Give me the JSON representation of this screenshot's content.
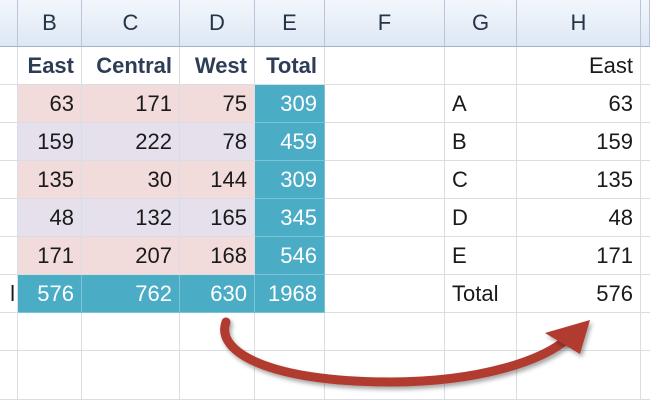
{
  "columns": [
    "B",
    "C",
    "D",
    "E",
    "F",
    "G",
    "H"
  ],
  "table": {
    "headers": [
      "East",
      "Central",
      "West",
      "Total"
    ],
    "rows": [
      {
        "values": [
          "63",
          "171",
          "75",
          "309"
        ]
      },
      {
        "values": [
          "159",
          "222",
          "78",
          "459"
        ]
      },
      {
        "values": [
          "135",
          "30",
          "144",
          "309"
        ]
      },
      {
        "values": [
          "48",
          "132",
          "165",
          "345"
        ]
      },
      {
        "values": [
          "171",
          "207",
          "168",
          "546"
        ]
      }
    ],
    "total_row_label": "l",
    "total_row": [
      "576",
      "762",
      "630",
      "1968"
    ]
  },
  "result": {
    "header": "East",
    "rows": [
      {
        "label": "A",
        "value": "63"
      },
      {
        "label": "B",
        "value": "159"
      },
      {
        "label": "C",
        "value": "135"
      },
      {
        "label": "D",
        "value": "48"
      },
      {
        "label": "E",
        "value": "171"
      },
      {
        "label": "Total",
        "value": "576"
      }
    ]
  },
  "colors": {
    "row_odd": "#f2dcdb",
    "row_even": "#e5e0ec",
    "total": "#4bacc6",
    "arrow": "#b03a2e"
  }
}
